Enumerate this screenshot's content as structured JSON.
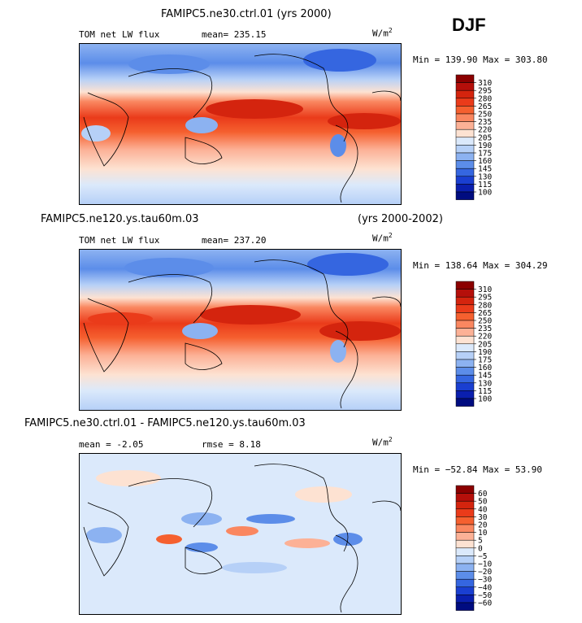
{
  "season": "DJF",
  "chart_data": [
    {
      "type": "heatmap",
      "title": "FAMIPC5.ne30.ctrl.01 (yrs 2000)",
      "variable": "TOM net LW flux",
      "stat": "mean= 235.15",
      "units_base": "W/m",
      "units_exp": "2",
      "minmax": "Min = 139.90 Max = 303.80",
      "colorbar": {
        "levels": [
          "310",
          "295",
          "280",
          "265",
          "250",
          "235",
          "220",
          "205",
          "190",
          "175",
          "160",
          "145",
          "130",
          "115",
          "100"
        ],
        "colors": [
          "#8b0000",
          "#b50f0a",
          "#d4240e",
          "#ea3b1a",
          "#f5602f",
          "#fa8760",
          "#fcb196",
          "#fde2d2",
          "#dbe9fb",
          "#b6d0f7",
          "#8cb2f1",
          "#5c8de9",
          "#3566e0",
          "#1a3fd1",
          "#0a1fae",
          "#000c80"
        ]
      }
    },
    {
      "type": "heatmap",
      "title": "FAMIPC5.ne120.ys.tau60m.03",
      "title_right": "(yrs 2000-2002)",
      "variable": "TOM net LW flux",
      "stat": "mean= 237.20",
      "units_base": "W/m",
      "units_exp": "2",
      "minmax": "Min = 138.64 Max = 304.29",
      "colorbar": {
        "levels": [
          "310",
          "295",
          "280",
          "265",
          "250",
          "235",
          "220",
          "205",
          "190",
          "175",
          "160",
          "145",
          "130",
          "115",
          "100"
        ],
        "colors": [
          "#8b0000",
          "#b50f0a",
          "#d4240e",
          "#ea3b1a",
          "#f5602f",
          "#fa8760",
          "#fcb196",
          "#fde2d2",
          "#dbe9fb",
          "#b6d0f7",
          "#8cb2f1",
          "#5c8de9",
          "#3566e0",
          "#1a3fd1",
          "#0a1fae",
          "#000c80"
        ]
      }
    },
    {
      "type": "heatmap",
      "title": "FAMIPC5.ne30.ctrl.01 - FAMIPC5.ne120.ys.tau60m.03",
      "stat_mean": "mean =  -2.05",
      "stat_rmse": "rmse =   8.18",
      "units_base": "W/m",
      "units_exp": "2",
      "minmax": "Min = −52.84 Max =  53.90",
      "colorbar": {
        "levels": [
          "60",
          "50",
          "40",
          "30",
          "20",
          "10",
          "5",
          "0",
          "−5",
          "−10",
          "−20",
          "−30",
          "−40",
          "−50",
          "−60"
        ],
        "colors": [
          "#8b0000",
          "#b50f0a",
          "#d4240e",
          "#ea3b1a",
          "#f5602f",
          "#fa8760",
          "#fcb196",
          "#fde2d2",
          "#dbe9fb",
          "#b6d0f7",
          "#8cb2f1",
          "#5c8de9",
          "#3566e0",
          "#1a3fd1",
          "#0a1fae",
          "#000c80"
        ]
      }
    }
  ]
}
